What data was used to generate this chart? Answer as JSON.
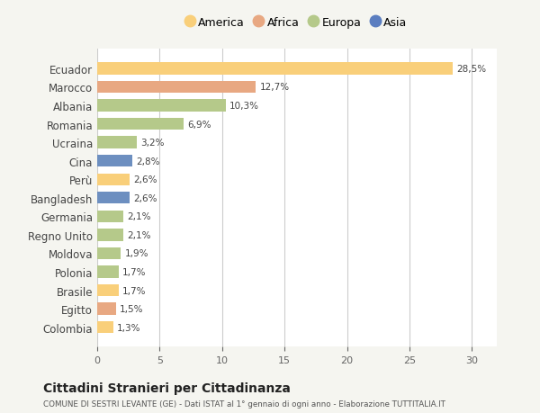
{
  "categories": [
    "Ecuador",
    "Marocco",
    "Albania",
    "Romania",
    "Ucraina",
    "Cina",
    "Perù",
    "Bangladesh",
    "Germania",
    "Regno Unito",
    "Moldova",
    "Polonia",
    "Brasile",
    "Egitto",
    "Colombia"
  ],
  "values": [
    28.5,
    12.7,
    10.3,
    6.9,
    3.2,
    2.8,
    2.6,
    2.6,
    2.1,
    2.1,
    1.9,
    1.7,
    1.7,
    1.5,
    1.3
  ],
  "labels": [
    "28,5%",
    "12,7%",
    "10,3%",
    "6,9%",
    "3,2%",
    "2,8%",
    "2,6%",
    "2,6%",
    "2,1%",
    "2,1%",
    "1,9%",
    "1,7%",
    "1,7%",
    "1,5%",
    "1,3%"
  ],
  "colors": [
    "#F9CF7A",
    "#E8A882",
    "#B5C98A",
    "#B5C98A",
    "#B5C98A",
    "#6D8FC0",
    "#F9CF7A",
    "#6D8FC0",
    "#B5C98A",
    "#B5C98A",
    "#B5C98A",
    "#B5C98A",
    "#F9CF7A",
    "#E8A882",
    "#F9CF7A"
  ],
  "legend": [
    {
      "label": "America",
      "color": "#F9CF7A"
    },
    {
      "label": "Africa",
      "color": "#E8A882"
    },
    {
      "label": "Europa",
      "color": "#B5C98A"
    },
    {
      "label": "Asia",
      "color": "#5B7EC0"
    }
  ],
  "xlim": [
    0,
    32
  ],
  "xticks": [
    0,
    5,
    10,
    15,
    20,
    25,
    30
  ],
  "title": "Cittadini Stranieri per Cittadinanza",
  "subtitle": "COMUNE DI SESTRI LEVANTE (GE) - Dati ISTAT al 1° gennaio di ogni anno - Elaborazione TUTTITALIA.IT",
  "background_color": "#f5f5f0",
  "plot_bg_color": "#ffffff"
}
